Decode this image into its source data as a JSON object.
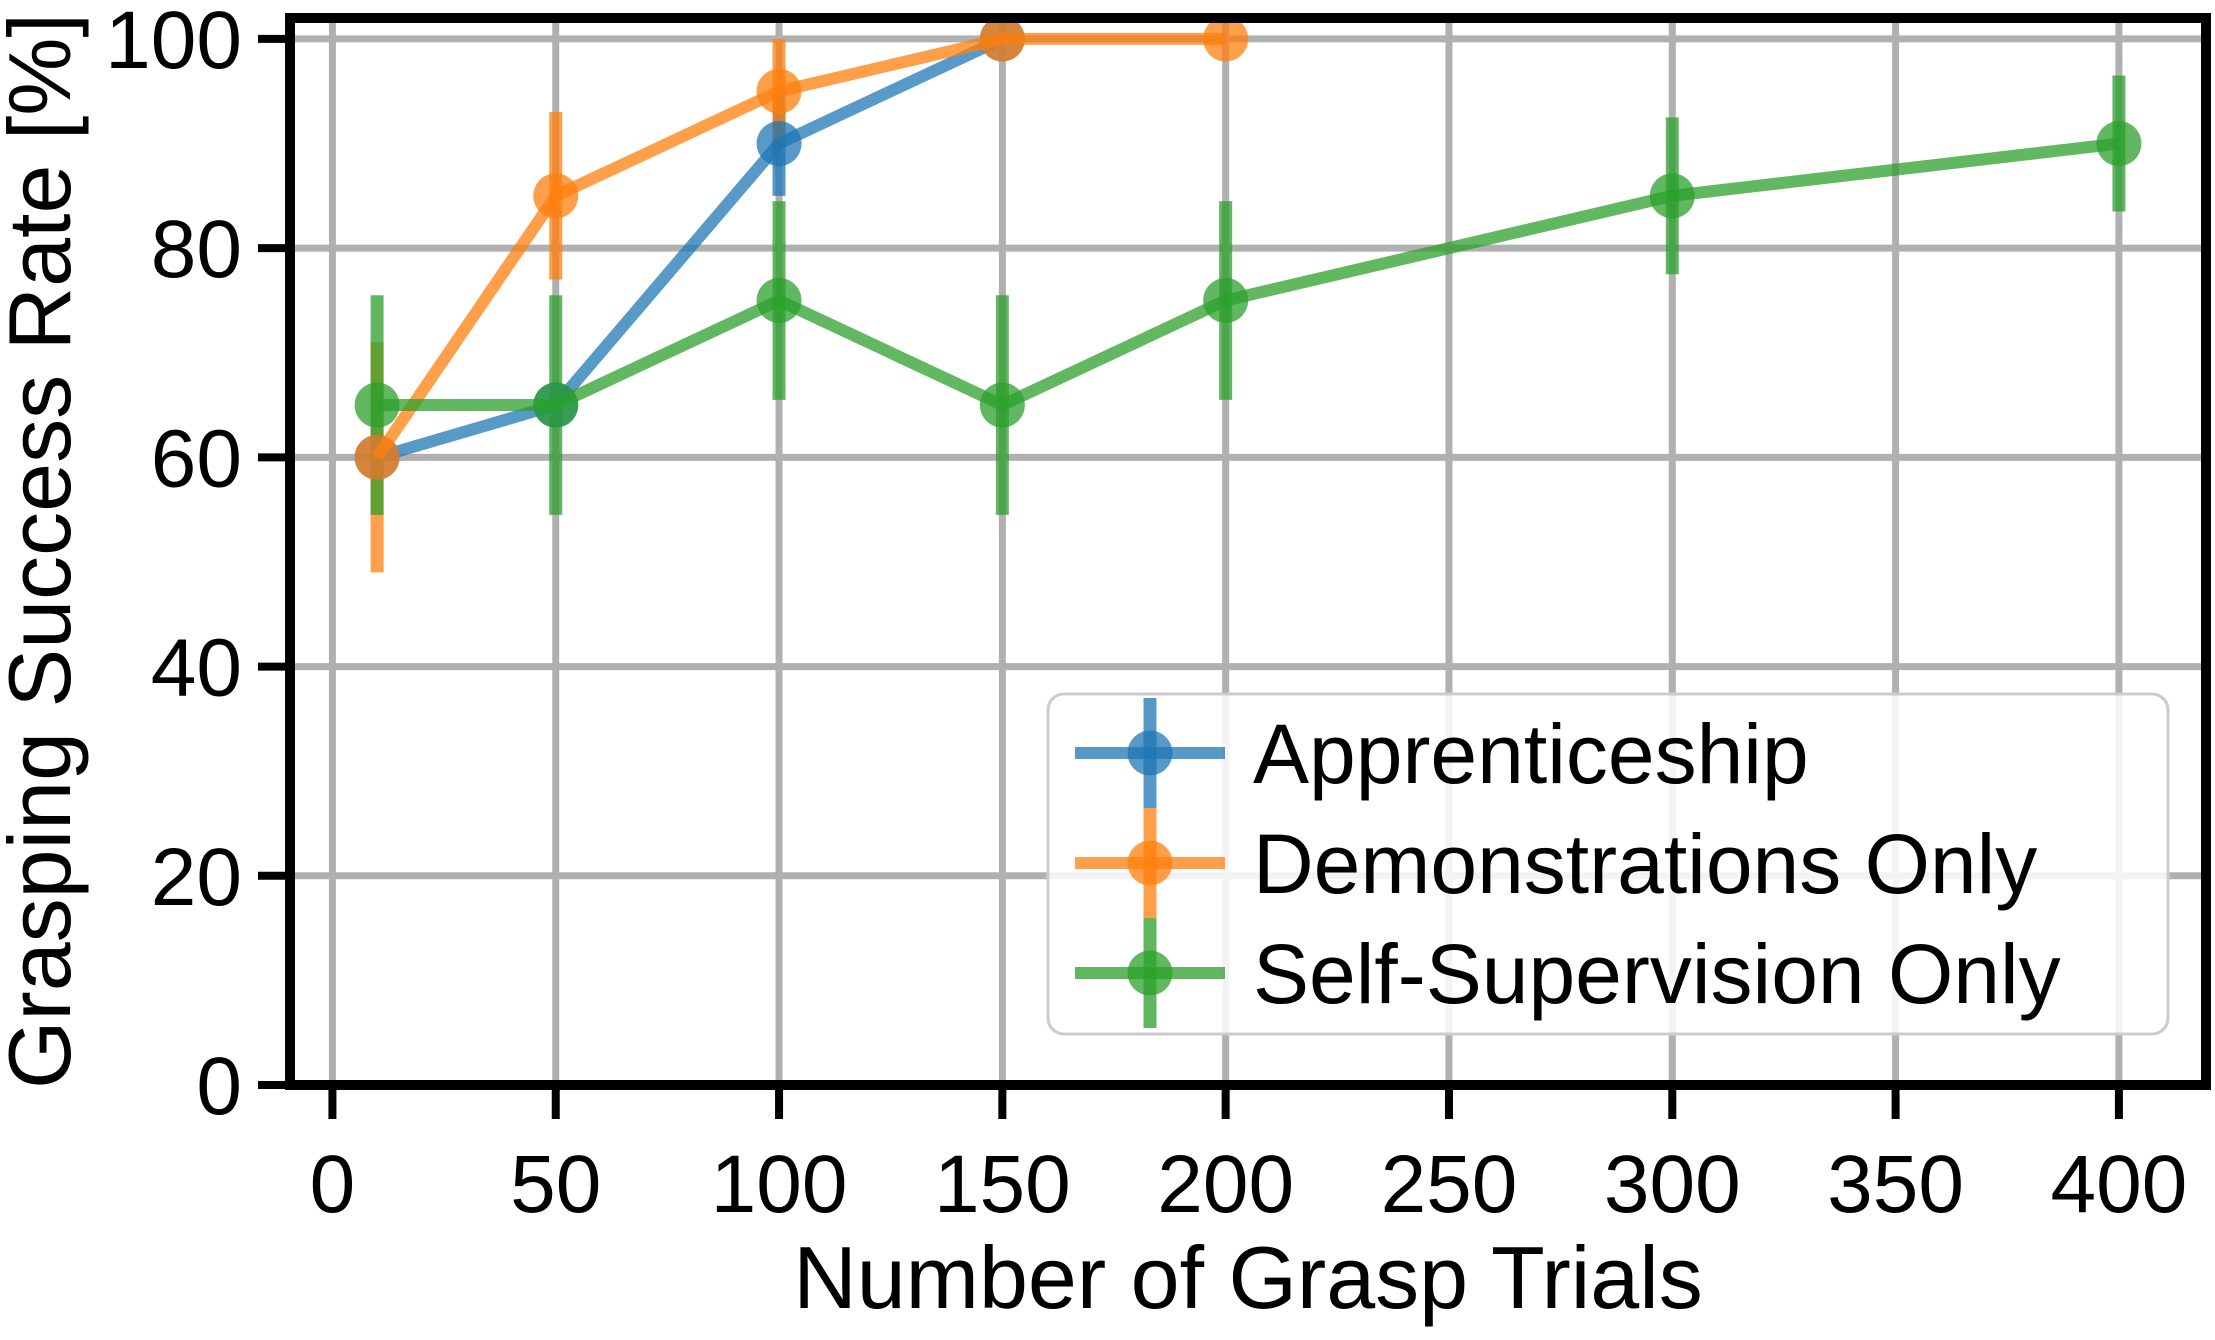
{
  "figure": {
    "background": "#ffffff"
  },
  "chart_data": {
    "type": "line",
    "title": "",
    "xlabel": "Number of Grasp Trials",
    "ylabel": "Grasping Success Rate [%]",
    "xlim": [
      -9.5,
      419.5
    ],
    "ylim": [
      0,
      102
    ],
    "xticks": [
      0,
      50,
      100,
      150,
      200,
      250,
      300,
      350,
      400
    ],
    "yticks": [
      0,
      20,
      40,
      60,
      80,
      100
    ],
    "grid": true,
    "grid_color": "#b0b0b0",
    "spine_color": "#000000",
    "series_opacity": 0.75,
    "legend_position": "lower right",
    "series": [
      {
        "name": "Apprenticeship",
        "color": "#1f77b4",
        "x": [
          10,
          50,
          100,
          150
        ],
        "y": [
          60,
          65,
          90,
          100
        ],
        "yerr": [
          0,
          0,
          5,
          0
        ]
      },
      {
        "name": "Demonstrations Only",
        "color": "#ff7f0e",
        "x": [
          10,
          50,
          100,
          150,
          200
        ],
        "y": [
          60,
          85,
          95,
          100,
          100
        ],
        "yerr": [
          11,
          8,
          5,
          0,
          0
        ]
      },
      {
        "name": "Self-Supervision Only",
        "color": "#2ca02c",
        "x": [
          10,
          50,
          100,
          150,
          200,
          300,
          400
        ],
        "y": [
          65,
          65,
          75,
          65,
          75,
          85,
          90
        ],
        "yerr": [
          10.5,
          10.5,
          9.5,
          10.5,
          9.5,
          7.5,
          6.5
        ]
      }
    ]
  },
  "legend": {
    "entries": [
      "Apprenticeship",
      "Demonstrations Only",
      "Self-Supervision Only"
    ]
  }
}
